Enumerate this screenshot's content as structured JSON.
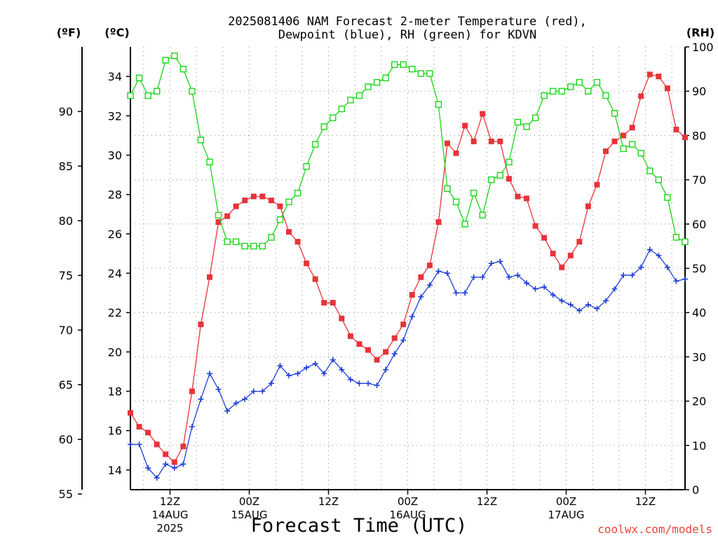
{
  "title_line1": "2025081406 NAM Forecast 2-meter Temperature (red),",
  "title_line2": "Dewpoint (blue), RH (green) for KDVN",
  "unit_f": "(ºF)",
  "unit_c": "(ºC)",
  "unit_rh": "(RH)",
  "xlabel": "Forecast Time (UTC)",
  "credit": "coolwx.com/models",
  "colors": {
    "temp": "#e8333a",
    "dewpoint": "#1f3fd6",
    "rh": "#19d619",
    "grid": "#8a8a8a"
  },
  "chart_data": {
    "type": "line",
    "x_unit": "hour since 2025-08-14 06Z",
    "x_range": [
      0,
      63
    ],
    "y_left_c": {
      "range": [
        13.0,
        35.5
      ],
      "ticks": [
        14,
        16,
        18,
        20,
        22,
        24,
        26,
        28,
        30,
        32,
        34
      ]
    },
    "y_left_f": {
      "ticks": [
        55,
        60,
        65,
        70,
        75,
        80,
        85,
        90
      ]
    },
    "y_right_rh": {
      "range": [
        0,
        100
      ],
      "ticks": [
        0,
        10,
        20,
        30,
        40,
        50,
        60,
        70,
        80,
        90,
        100
      ]
    },
    "x_ticks": [
      {
        "hour": 4.5,
        "lines": [
          "12Z",
          "14AUG",
          "2025"
        ]
      },
      {
        "hour": 13.5,
        "lines": [
          "00Z",
          "15AUG"
        ]
      },
      {
        "hour": 22.5,
        "lines": [
          "12Z"
        ]
      },
      {
        "hour": 31.5,
        "lines": [
          "00Z",
          "16AUG"
        ]
      },
      {
        "hour": 40.5,
        "lines": [
          "12Z"
        ]
      },
      {
        "hour": 49.5,
        "lines": [
          "00Z",
          "17AUG"
        ]
      },
      {
        "hour": 58.5,
        "lines": [
          "12Z"
        ]
      }
    ],
    "grid": true,
    "series": [
      {
        "name": "Temperature",
        "axis": "celsius",
        "marker": "filled-square",
        "color": "#e8333a",
        "values": [
          16.9,
          16.2,
          15.9,
          15.3,
          14.8,
          14.4,
          15.2,
          18.0,
          21.4,
          23.8,
          26.6,
          26.9,
          27.4,
          27.7,
          27.9,
          27.9,
          27.7,
          27.4,
          26.1,
          25.6,
          24.5,
          23.7,
          22.5,
          22.5,
          21.7,
          20.8,
          20.4,
          20.1,
          19.6,
          20.0,
          20.7,
          21.4,
          22.9,
          23.8,
          24.4,
          26.6,
          30.6,
          30.1,
          31.5,
          30.7,
          32.1,
          30.7,
          30.7,
          28.8,
          27.9,
          27.8,
          26.4,
          25.8,
          25.0,
          24.3,
          24.9,
          25.6,
          27.4,
          28.5,
          30.2,
          30.7,
          31.0,
          31.4,
          33.0,
          34.1,
          34.0,
          33.4,
          31.3,
          30.9
        ]
      },
      {
        "name": "Dewpoint",
        "axis": "celsius",
        "marker": "plus",
        "color": "#1f3fd6",
        "values": [
          15.3,
          15.3,
          14.1,
          13.6,
          14.3,
          14.1,
          14.3,
          16.2,
          17.6,
          18.9,
          18.1,
          17.0,
          17.4,
          17.6,
          18.0,
          18.0,
          18.4,
          19.3,
          18.8,
          18.9,
          19.2,
          19.4,
          18.9,
          19.6,
          19.1,
          18.6,
          18.4,
          18.4,
          18.3,
          19.1,
          19.9,
          20.6,
          21.8,
          22.8,
          23.4,
          24.1,
          24.0,
          23.0,
          23.0,
          23.8,
          23.8,
          24.5,
          24.6,
          23.8,
          23.9,
          23.5,
          23.2,
          23.3,
          22.9,
          22.6,
          22.4,
          22.1,
          22.4,
          22.2,
          22.6,
          23.2,
          23.9,
          23.9,
          24.3,
          25.2,
          24.9,
          24.3,
          23.6,
          23.7
        ]
      },
      {
        "name": "Relative Humidity",
        "axis": "rh",
        "marker": "open-square",
        "color": "#19d619",
        "values": [
          89,
          93,
          89,
          90,
          97,
          98,
          95,
          90,
          79,
          74,
          62,
          56,
          56,
          55,
          55,
          55,
          57,
          61,
          65,
          67,
          73,
          78,
          82,
          84,
          86,
          88,
          89,
          91,
          92,
          93,
          96,
          96,
          95,
          94,
          94,
          87,
          68,
          65,
          60,
          67,
          62,
          70,
          71,
          74,
          83,
          82,
          84,
          89,
          90,
          90,
          91,
          92,
          90,
          92,
          89,
          85,
          77,
          78,
          76,
          72,
          70,
          66,
          57,
          56
        ]
      }
    ]
  }
}
